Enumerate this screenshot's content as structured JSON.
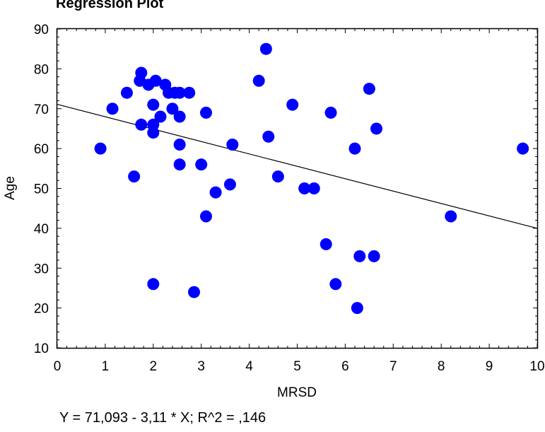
{
  "chart_data": {
    "type": "scatter",
    "title": "Regression Plot",
    "xlabel": "MRSD",
    "ylabel": "Age",
    "xlim": [
      0,
      10
    ],
    "ylim": [
      10,
      90
    ],
    "x_ticks": [
      0,
      1,
      2,
      3,
      4,
      5,
      6,
      7,
      8,
      9,
      10
    ],
    "y_ticks": [
      10,
      20,
      30,
      40,
      50,
      60,
      70,
      80,
      90
    ],
    "grid": false,
    "point_color": "#0000ff",
    "line_color": "#000000",
    "regression": {
      "intercept": 71.093,
      "slope": -3.11,
      "r_squared": 0.146,
      "equation_text": "Y = 71,093 - 3,11 * X; R^2 = ,146"
    },
    "points": [
      {
        "x": 0.9,
        "y": 60
      },
      {
        "x": 1.15,
        "y": 70
      },
      {
        "x": 1.45,
        "y": 74
      },
      {
        "x": 1.6,
        "y": 53
      },
      {
        "x": 1.72,
        "y": 77
      },
      {
        "x": 1.75,
        "y": 79
      },
      {
        "x": 1.75,
        "y": 66
      },
      {
        "x": 1.9,
        "y": 76
      },
      {
        "x": 2.0,
        "y": 71
      },
      {
        "x": 2.0,
        "y": 66
      },
      {
        "x": 2.0,
        "y": 64
      },
      {
        "x": 2.05,
        "y": 77
      },
      {
        "x": 2.15,
        "y": 68
      },
      {
        "x": 2.25,
        "y": 76
      },
      {
        "x": 2.32,
        "y": 74
      },
      {
        "x": 2.4,
        "y": 70
      },
      {
        "x": 2.45,
        "y": 74
      },
      {
        "x": 2.55,
        "y": 74
      },
      {
        "x": 2.55,
        "y": 68
      },
      {
        "x": 2.55,
        "y": 61
      },
      {
        "x": 2.55,
        "y": 56
      },
      {
        "x": 2.75,
        "y": 74
      },
      {
        "x": 2.0,
        "y": 26
      },
      {
        "x": 2.85,
        "y": 24
      },
      {
        "x": 3.0,
        "y": 56
      },
      {
        "x": 3.1,
        "y": 69
      },
      {
        "x": 3.1,
        "y": 43
      },
      {
        "x": 3.3,
        "y": 49
      },
      {
        "x": 3.6,
        "y": 51
      },
      {
        "x": 3.65,
        "y": 61
      },
      {
        "x": 4.2,
        "y": 77
      },
      {
        "x": 4.35,
        "y": 85
      },
      {
        "x": 4.4,
        "y": 63
      },
      {
        "x": 4.6,
        "y": 53
      },
      {
        "x": 4.9,
        "y": 71
      },
      {
        "x": 5.15,
        "y": 50
      },
      {
        "x": 5.35,
        "y": 50
      },
      {
        "x": 5.6,
        "y": 36
      },
      {
        "x": 5.7,
        "y": 69
      },
      {
        "x": 5.8,
        "y": 26
      },
      {
        "x": 6.2,
        "y": 60
      },
      {
        "x": 6.25,
        "y": 20
      },
      {
        "x": 6.3,
        "y": 33
      },
      {
        "x": 6.5,
        "y": 75
      },
      {
        "x": 6.6,
        "y": 33
      },
      {
        "x": 6.65,
        "y": 65
      },
      {
        "x": 8.2,
        "y": 43
      },
      {
        "x": 9.7,
        "y": 60
      }
    ]
  }
}
